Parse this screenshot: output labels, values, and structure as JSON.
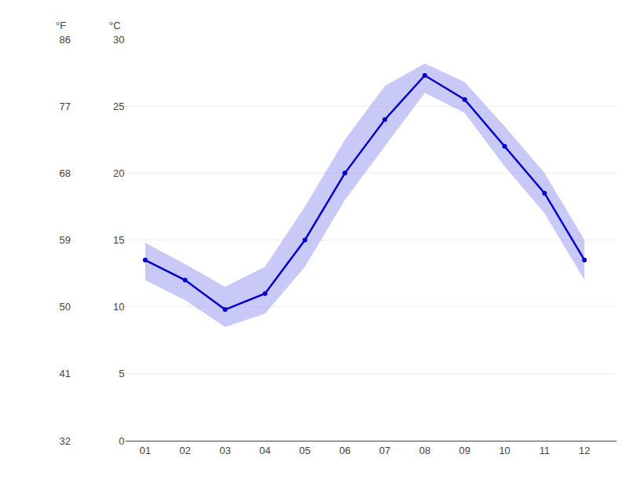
{
  "chart_data": {
    "type": "line",
    "x": [
      1,
      2,
      3,
      4,
      5,
      6,
      7,
      8,
      9,
      10,
      11,
      12
    ],
    "xlim": [
      0.5,
      12.8
    ],
    "xticks": [
      {
        "value": 1,
        "label": "01"
      },
      {
        "value": 2,
        "label": "02"
      },
      {
        "value": 3,
        "label": "03"
      },
      {
        "value": 4,
        "label": "04"
      },
      {
        "value": 5,
        "label": "05"
      },
      {
        "value": 6,
        "label": "06"
      },
      {
        "value": 7,
        "label": "07"
      },
      {
        "value": 8,
        "label": "08"
      },
      {
        "value": 9,
        "label": "09"
      },
      {
        "value": 10,
        "label": "10"
      },
      {
        "value": 11,
        "label": "11"
      },
      {
        "value": 12,
        "label": "12"
      }
    ],
    "ylim": [
      0,
      30
    ],
    "yticks": [
      0,
      5,
      10,
      15,
      20,
      25,
      30
    ],
    "ylabel": "°C",
    "y2lim": [
      32,
      86
    ],
    "y2ticks": [
      32,
      41,
      50,
      59,
      68,
      77,
      86
    ],
    "y2label": "°F",
    "grid": true,
    "series": [
      {
        "type": "band",
        "color": "#8888ee",
        "lower": [
          12.0,
          10.5,
          8.5,
          9.5,
          13.0,
          18.0,
          22.0,
          26.0,
          24.5,
          20.5,
          17.0,
          12.0
        ],
        "upper": [
          14.8,
          13.2,
          11.5,
          13.0,
          17.5,
          22.5,
          26.5,
          28.2,
          26.8,
          23.5,
          20.0,
          15.0
        ]
      },
      {
        "type": "line",
        "color": "#0000cc",
        "marker": "circle",
        "values": [
          13.5,
          12.0,
          9.8,
          11.0,
          15.0,
          20.0,
          24.0,
          27.3,
          25.5,
          22.0,
          18.5,
          13.5
        ]
      }
    ]
  }
}
